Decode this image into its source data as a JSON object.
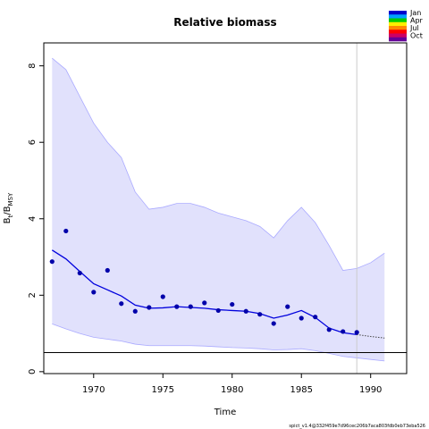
{
  "chart_data": {
    "type": "scatter",
    "title": "Relative biomass",
    "xlabel": "Time",
    "ylabel_main": "B",
    "ylabel_sub1": "t",
    "ylabel_mid": "/B",
    "ylabel_sub2": "MSY",
    "xlim": [
      1966.4,
      1992.6
    ],
    "ylim": [
      -0.05,
      8.6
    ],
    "xticks": [
      1970,
      1975,
      1980,
      1985,
      1990
    ],
    "yticks": [
      0,
      2,
      4,
      6,
      8
    ],
    "reference_line_y": 0.5,
    "vertical_line_x": 1989.0,
    "observations": {
      "x": [
        1967,
        1968,
        1969,
        1970,
        1971,
        1972,
        1973,
        1974,
        1975,
        1976,
        1977,
        1978,
        1979,
        1980,
        1981,
        1982,
        1983,
        1984,
        1985,
        1986,
        1987,
        1988,
        1989
      ],
      "y": [
        2.88,
        3.68,
        2.58,
        2.08,
        2.65,
        1.78,
        1.58,
        1.68,
        1.96,
        1.7,
        1.7,
        1.8,
        1.6,
        1.76,
        1.58,
        1.5,
        1.26,
        1.7,
        1.4,
        1.43,
        1.1,
        1.05,
        1.03
      ]
    },
    "estimate": {
      "x": [
        1967,
        1968,
        1969,
        1970,
        1971,
        1972,
        1973,
        1974,
        1975,
        1976,
        1977,
        1978,
        1979,
        1980,
        1981,
        1982,
        1983,
        1984,
        1985,
        1986,
        1987,
        1988,
        1989
      ],
      "y": [
        3.18,
        2.95,
        2.62,
        2.3,
        2.14,
        1.98,
        1.74,
        1.66,
        1.67,
        1.7,
        1.68,
        1.66,
        1.62,
        1.6,
        1.58,
        1.52,
        1.4,
        1.48,
        1.6,
        1.42,
        1.14,
        1.02,
        0.97
      ]
    },
    "forecast": {
      "x": [
        1989,
        1990,
        1991
      ],
      "y": [
        0.97,
        0.92,
        0.88
      ]
    },
    "ci_upper": {
      "x": [
        1967,
        1968,
        1969,
        1970,
        1971,
        1972,
        1973,
        1974,
        1975,
        1976,
        1977,
        1978,
        1979,
        1980,
        1981,
        1982,
        1983,
        1984,
        1985,
        1986,
        1987,
        1988,
        1989,
        1990,
        1991
      ],
      "y": [
        8.2,
        7.9,
        7.2,
        6.5,
        6.0,
        5.6,
        4.7,
        4.25,
        4.3,
        4.4,
        4.4,
        4.3,
        4.15,
        4.05,
        3.95,
        3.8,
        3.5,
        3.95,
        4.3,
        3.9,
        3.3,
        2.65,
        2.7,
        2.85,
        3.1
      ]
    },
    "ci_lower": {
      "x": [
        1967,
        1968,
        1969,
        1970,
        1971,
        1972,
        1973,
        1974,
        1975,
        1976,
        1977,
        1978,
        1979,
        1980,
        1981,
        1982,
        1983,
        1984,
        1985,
        1986,
        1987,
        1988,
        1989,
        1990,
        1991
      ],
      "y": [
        1.25,
        1.12,
        1.0,
        0.9,
        0.85,
        0.8,
        0.72,
        0.68,
        0.68,
        0.68,
        0.68,
        0.67,
        0.65,
        0.63,
        0.62,
        0.6,
        0.57,
        0.58,
        0.6,
        0.55,
        0.48,
        0.4,
        0.36,
        0.32,
        0.28
      ]
    },
    "legend": {
      "placement": "top-right",
      "labels": [
        "Jan",
        "Apr",
        "Jul",
        "Oct"
      ],
      "colors": [
        "#0000cc",
        "#00a0ff",
        "#00cc00",
        "#ffee00",
        "#ff8800",
        "#ff0000",
        "#cc0066",
        "#660099"
      ]
    },
    "colors": {
      "ci_fill": "#e1e1fc",
      "ci_line": "#aaaaff",
      "estimate_line": "#0000dd",
      "points": "#0000aa",
      "forecast_line": "#444444",
      "vertical_line": "#cccccc",
      "reference_line": "#000000"
    },
    "footer": "spict_v1.4@332f459e7d96cec206b7aca803fdb0eb73eba526"
  }
}
